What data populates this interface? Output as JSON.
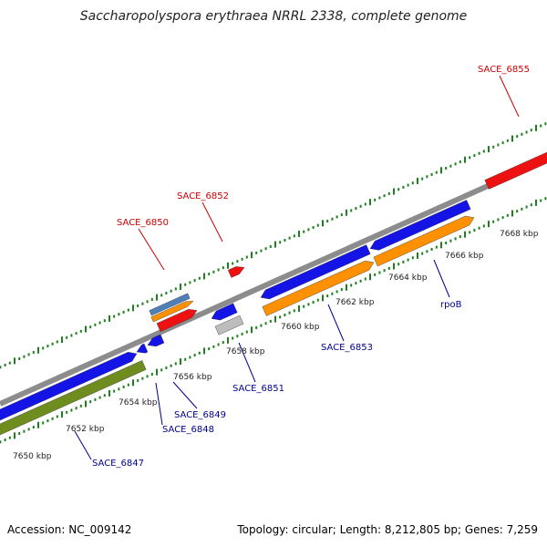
{
  "title": "Saccharopolyspora erythraea NRRL 2338, complete genome",
  "footer": {
    "accession": "Accession: NC_009142",
    "summary": "Topology: circular; Length: 8,212,805 bp; Genes: 7,259"
  },
  "colors": {
    "backbone": "#8c8c8c",
    "tick": "#1e7f1e",
    "blue_gene": "#1414e6",
    "orange_gene": "#ff9000",
    "green_gene": "#6f8c1f",
    "red_gene": "#ee1111",
    "steelblue_gene": "#4f7fb8",
    "grey_gene": "#bdbdbd",
    "label_red": "#cc0000",
    "label_blue": "#00008b"
  },
  "scale_labels": [
    "7650 kbp",
    "7652 kbp",
    "7654 kbp",
    "7656 kbp",
    "7658 kbp",
    "7660 kbp",
    "7662 kbp",
    "7664 kbp",
    "7666 kbp",
    "7668 kbp"
  ],
  "gene_labels": [
    {
      "text": "SACE_6855",
      "color": "red"
    },
    {
      "text": "SACE_6852",
      "color": "red"
    },
    {
      "text": "SACE_6850",
      "color": "red"
    },
    {
      "text": "SACE_6853",
      "color": "blue"
    },
    {
      "text": "rpoB",
      "color": "blue"
    },
    {
      "text": "SACE_6851",
      "color": "blue"
    },
    {
      "text": "SACE_6849",
      "color": "blue"
    },
    {
      "text": "SACE_6848",
      "color": "blue"
    },
    {
      "text": "SACE_6847",
      "color": "blue"
    }
  ]
}
